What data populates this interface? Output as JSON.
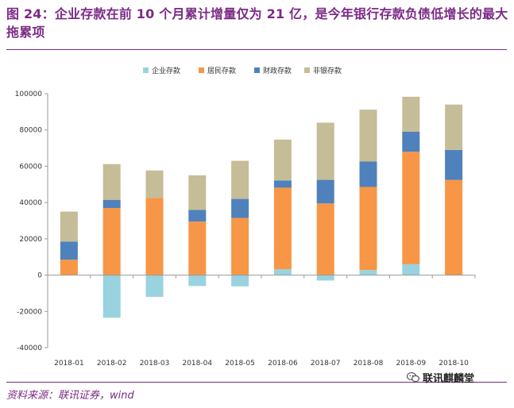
{
  "header": {
    "title": "图 24：企业存款在前 10 个月累计增量仅为 21 亿，是今年银行存款负债低增长的最大拖累项"
  },
  "footer": {
    "source": "资料来源：联讯证券，wind",
    "watermark": "联讯麒麟堂"
  },
  "icons": {
    "watermark": "wechat-icon"
  },
  "chart_data": {
    "type": "bar",
    "stacked": true,
    "title": "",
    "xlabel": "",
    "ylabel": "",
    "ylim": [
      -40000,
      100000
    ],
    "yticks": [
      100000,
      80000,
      60000,
      40000,
      20000,
      0,
      -20000,
      -40000
    ],
    "grid": false,
    "legend_position": "top",
    "categories": [
      "2018-01",
      "2018-02",
      "2018-03",
      "2018-04",
      "2018-05",
      "2018-06",
      "2018-07",
      "2018-08",
      "2018-09",
      "2018-10"
    ],
    "series": [
      {
        "name": "企业存款",
        "color": "#99d3df",
        "values": [
          0,
          -23500,
          -12000,
          -6000,
          -6200,
          3200,
          -3000,
          2800,
          6000,
          0
        ]
      },
      {
        "name": "居民存款",
        "color": "#f79646",
        "values": [
          8500,
          37000,
          42500,
          29500,
          31500,
          45000,
          39500,
          45800,
          62000,
          52500
        ]
      },
      {
        "name": "财政存款",
        "color": "#4f81bd",
        "values": [
          10000,
          4500,
          0,
          6500,
          10500,
          4000,
          13000,
          14000,
          11000,
          16500
        ]
      },
      {
        "name": "非银存款",
        "color": "#c4bd97",
        "values": [
          16500,
          19700,
          15200,
          19000,
          21000,
          22500,
          31500,
          28600,
          19300,
          25000
        ]
      }
    ]
  }
}
